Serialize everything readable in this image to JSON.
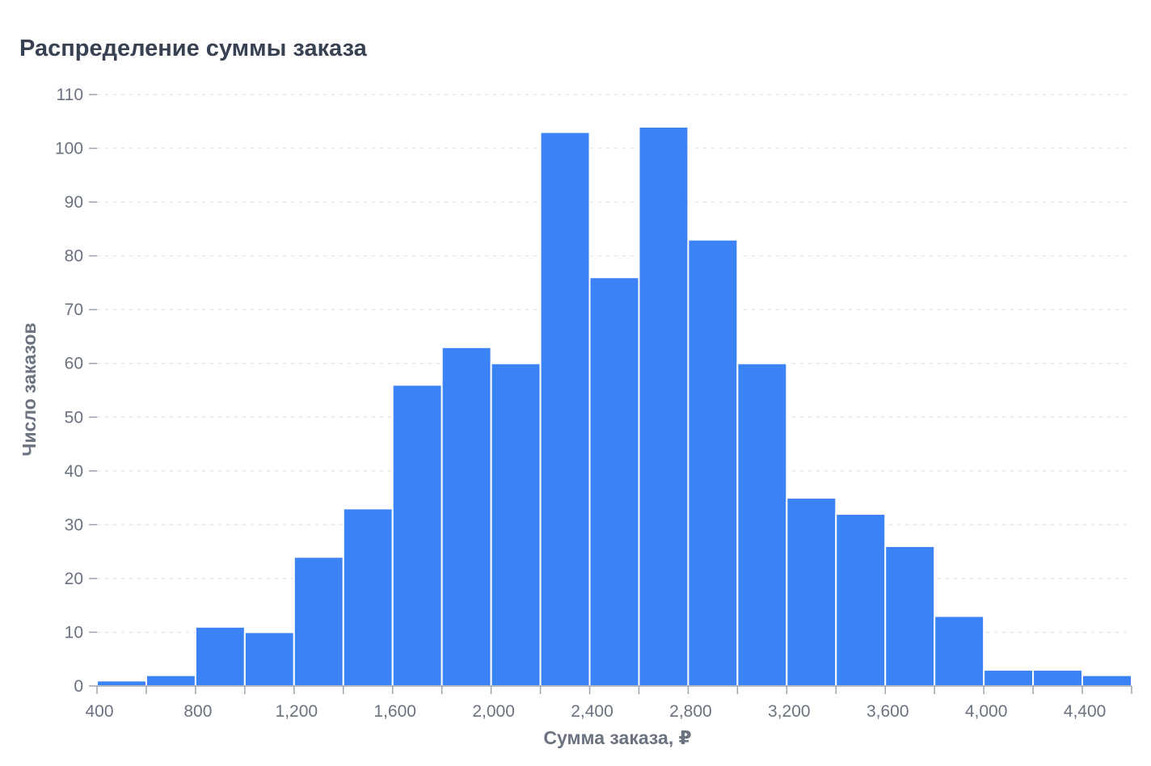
{
  "chart_data": {
    "type": "bar",
    "title": "Распределение суммы заказа",
    "xlabel": "Сумма заказа, ₽",
    "ylabel": "Число заказов",
    "bin_edges": [
      400,
      600,
      800,
      1000,
      1200,
      1400,
      1600,
      1800,
      2000,
      2200,
      2400,
      2600,
      2800,
      3000,
      3200,
      3400,
      3600,
      3800,
      4000,
      4200,
      4400,
      4600
    ],
    "values": [
      1,
      2,
      11,
      10,
      24,
      33,
      56,
      63,
      60,
      103,
      76,
      104,
      83,
      60,
      35,
      32,
      26,
      13,
      3,
      3,
      2
    ],
    "xlim": [
      400,
      4600
    ],
    "ylim": [
      0,
      110
    ],
    "x_ticks": [
      400,
      800,
      1200,
      1600,
      2000,
      2400,
      2800,
      3200,
      3600,
      4000,
      4400
    ],
    "x_tick_labels": [
      "400",
      "800",
      "1,200",
      "1,600",
      "2,000",
      "2,400",
      "2,800",
      "3,200",
      "3,600",
      "4,000",
      "4,400"
    ],
    "y_ticks": [
      0,
      10,
      20,
      30,
      40,
      50,
      60,
      70,
      80,
      90,
      100,
      110
    ],
    "y_tick_labels": [
      "0",
      "10",
      "20",
      "30",
      "40",
      "50",
      "60",
      "70",
      "80",
      "90",
      "100",
      "110"
    ],
    "grid": "horizontal dotted",
    "legend": "none",
    "bar_color": "#3b82f6",
    "bar_edge_color": "#ffffff"
  }
}
